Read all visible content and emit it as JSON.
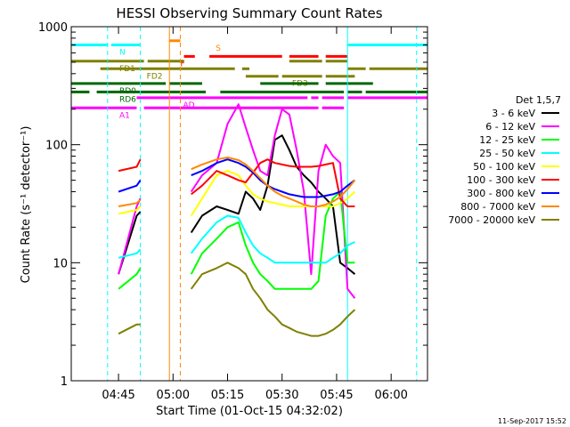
{
  "chart_data": {
    "type": "line",
    "title": "HESSI Observing Summary Count Rates",
    "xlabel": "Start Time (01-Oct-15 04:32:02)",
    "ylabel": "Count Rate (s⁻¹ detector⁻¹)",
    "footer": "11-Sep-2017 15:52",
    "xlim": [
      "04:32",
      "06:10"
    ],
    "ylim": [
      1,
      1000
    ],
    "yscale": "log",
    "grid": false,
    "legend_placement": "right",
    "legend_title": "Det 1,5,7",
    "x_ticks": [
      "04:45",
      "05:00",
      "05:15",
      "05:30",
      "05:45",
      "06:00"
    ],
    "y_ticks": [
      "1",
      "10",
      "100",
      "1000"
    ],
    "series": [
      {
        "name": "3 - 6 keV",
        "color": "#000000",
        "x": [
          "04:45",
          "04:50",
          "04:51",
          "04:55",
          "04:58",
          "05:03",
          "05:05",
          "05:08",
          "05:12",
          "05:15",
          "05:18",
          "05:20",
          "05:22",
          "05:24",
          "05:26",
          "05:28",
          "05:30",
          "05:32",
          "05:34",
          "05:36",
          "05:38",
          "05:40",
          "05:42",
          "05:44",
          "05:46",
          "05:48",
          "05:50"
        ],
        "y": [
          8,
          25,
          27,
          null,
          null,
          null,
          18,
          25,
          30,
          28,
          26,
          40,
          35,
          28,
          45,
          110,
          120,
          90,
          65,
          55,
          48,
          40,
          35,
          30,
          10,
          9,
          8
        ]
      },
      {
        "name": "6 - 12 keV",
        "color": "#ff00ff",
        "x": [
          "04:45",
          "04:50",
          "04:51",
          "04:55",
          "04:58",
          "05:03",
          "05:05",
          "05:08",
          "05:12",
          "05:15",
          "05:18",
          "05:20",
          "05:22",
          "05:24",
          "05:26",
          "05:28",
          "05:30",
          "05:32",
          "05:34",
          "05:36",
          "05:38",
          "05:40",
          "05:42",
          "05:44",
          "05:46",
          "05:48",
          "05:50"
        ],
        "y": [
          8,
          30,
          35,
          null,
          null,
          null,
          40,
          55,
          70,
          150,
          220,
          140,
          90,
          60,
          55,
          120,
          200,
          180,
          90,
          40,
          8,
          60,
          100,
          80,
          70,
          6,
          5
        ]
      },
      {
        "name": "12 - 25 keV",
        "color": "#00ff00",
        "x": [
          "04:45",
          "04:50",
          "04:51",
          "04:55",
          "04:58",
          "05:03",
          "05:05",
          "05:08",
          "05:12",
          "05:15",
          "05:18",
          "05:20",
          "05:22",
          "05:24",
          "05:26",
          "05:28",
          "05:30",
          "05:32",
          "05:34",
          "05:36",
          "05:38",
          "05:40",
          "05:42",
          "05:44",
          "05:46",
          "05:48",
          "05:50"
        ],
        "y": [
          6,
          8,
          9,
          null,
          null,
          null,
          8,
          12,
          16,
          20,
          22,
          14,
          10,
          8,
          7,
          6,
          6,
          6,
          6,
          6,
          6,
          7,
          25,
          35,
          40,
          10,
          10
        ]
      },
      {
        "name": "25 - 50 keV",
        "color": "#00ffff",
        "x": [
          "04:45",
          "04:50",
          "04:51",
          "04:55",
          "04:58",
          "05:03",
          "05:05",
          "05:08",
          "05:12",
          "05:15",
          "05:18",
          "05:20",
          "05:22",
          "05:24",
          "05:26",
          "05:28",
          "05:30",
          "05:32",
          "05:34",
          "05:36",
          "05:38",
          "05:40",
          "05:42",
          "05:44",
          "05:46",
          "05:48",
          "05:50"
        ],
        "y": [
          11,
          12,
          13,
          null,
          null,
          null,
          12,
          16,
          22,
          25,
          24,
          18,
          14,
          12,
          11,
          10,
          10,
          10,
          10,
          10,
          10,
          10,
          10,
          11,
          12,
          14,
          15
        ]
      },
      {
        "name": "50 - 100 keV",
        "color": "#ffff00",
        "x": [
          "04:45",
          "04:50",
          "04:51",
          "04:55",
          "04:58",
          "05:03",
          "05:05",
          "05:08",
          "05:12",
          "05:15",
          "05:18",
          "05:20",
          "05:22",
          "05:24",
          "05:26",
          "05:28",
          "05:30",
          "05:32",
          "05:34",
          "05:36",
          "05:38",
          "05:40",
          "05:42",
          "05:44",
          "05:46",
          "05:48",
          "05:50"
        ],
        "y": [
          26,
          28,
          30,
          null,
          null,
          null,
          25,
          35,
          55,
          60,
          55,
          45,
          38,
          35,
          33,
          32,
          31,
          30,
          30,
          30,
          30,
          30,
          30,
          30,
          32,
          35,
          40
        ]
      },
      {
        "name": "100 - 300 keV",
        "color": "#ff0000",
        "x": [
          "04:45",
          "04:50",
          "04:51",
          "04:55",
          "04:58",
          "05:03",
          "05:05",
          "05:08",
          "05:12",
          "05:15",
          "05:18",
          "05:20",
          "05:22",
          "05:24",
          "05:26",
          "05:28",
          "05:30",
          "05:32",
          "05:34",
          "05:36",
          "05:38",
          "05:40",
          "05:42",
          "05:44",
          "05:46",
          "05:48",
          "05:50"
        ],
        "y": [
          60,
          65,
          75,
          null,
          null,
          null,
          38,
          45,
          60,
          55,
          50,
          48,
          58,
          70,
          75,
          70,
          68,
          66,
          65,
          65,
          65,
          66,
          68,
          70,
          35,
          30,
          30
        ]
      },
      {
        "name": "300 - 800 keV",
        "color": "#0000ff",
        "x": [
          "04:45",
          "04:50",
          "04:51",
          "04:55",
          "04:58",
          "05:03",
          "05:05",
          "05:08",
          "05:12",
          "05:15",
          "05:18",
          "05:20",
          "05:22",
          "05:24",
          "05:26",
          "05:28",
          "05:30",
          "05:32",
          "05:34",
          "05:36",
          "05:38",
          "05:40",
          "05:42",
          "05:44",
          "05:46",
          "05:48",
          "05:50"
        ],
        "y": [
          40,
          45,
          50,
          null,
          null,
          null,
          55,
          60,
          70,
          75,
          70,
          65,
          58,
          50,
          45,
          42,
          40,
          38,
          37,
          36,
          36,
          36,
          37,
          38,
          40,
          45,
          50
        ]
      },
      {
        "name": "800 - 7000 keV",
        "color": "#ff8800",
        "x": [
          "04:45",
          "04:50",
          "04:51",
          "04:55",
          "04:58",
          "05:03",
          "05:05",
          "05:08",
          "05:12",
          "05:15",
          "05:18",
          "05:20",
          "05:22",
          "05:24",
          "05:26",
          "05:28",
          "05:30",
          "05:32",
          "05:34",
          "05:36",
          "05:38",
          "05:40",
          "05:42",
          "05:44",
          "05:46",
          "05:48",
          "05:50"
        ],
        "y": [
          30,
          32,
          34,
          null,
          null,
          null,
          62,
          68,
          75,
          78,
          74,
          68,
          60,
          52,
          45,
          40,
          37,
          35,
          33,
          31,
          30,
          30,
          31,
          33,
          36,
          42,
          50
        ]
      },
      {
        "name": "7000 - 20000 keV",
        "color": "#808000",
        "x": [
          "04:45",
          "04:50",
          "04:51",
          "04:55",
          "04:58",
          "05:03",
          "05:05",
          "05:08",
          "05:12",
          "05:15",
          "05:18",
          "05:20",
          "05:22",
          "05:24",
          "05:26",
          "05:28",
          "05:30",
          "05:32",
          "05:34",
          "05:36",
          "05:38",
          "05:40",
          "05:42",
          "05:44",
          "05:46",
          "05:48",
          "05:50"
        ],
        "y": [
          2.5,
          3,
          3,
          null,
          null,
          null,
          6,
          8,
          9,
          10,
          9,
          8,
          6,
          5,
          4,
          3.5,
          3,
          2.8,
          2.6,
          2.5,
          2.4,
          2.4,
          2.5,
          2.7,
          3,
          3.5,
          4
        ]
      }
    ],
    "flags": [
      {
        "label": "N",
        "color": "#00ffff",
        "y": 700,
        "segments": [
          [
            "04:32",
            "04:42"
          ],
          [
            "04:43",
            "04:51"
          ],
          [
            "05:48",
            "06:10"
          ]
        ]
      },
      {
        "label": "S",
        "color": "#ff8800",
        "y": 760,
        "segments": [
          [
            "04:59",
            "05:02"
          ]
        ]
      },
      {
        "label": "F",
        "color": "#ff0000",
        "y": 560,
        "segments": [
          [
            "05:03",
            "05:06"
          ],
          [
            "05:10",
            "05:30"
          ],
          [
            "05:32",
            "05:40"
          ],
          [
            "05:42",
            "05:48"
          ]
        ]
      },
      {
        "label": "FD1",
        "color": "#808000",
        "y": 510,
        "segments": [
          [
            "04:32",
            "04:52"
          ],
          [
            "04:53",
            "05:03"
          ],
          [
            "05:32",
            "05:41"
          ],
          [
            "05:42",
            "05:48"
          ]
        ]
      },
      {
        "label": "FD2",
        "color": "#808000",
        "y": 440,
        "segments": [
          [
            "04:40",
            "05:17"
          ],
          [
            "05:19",
            "05:21"
          ],
          [
            "05:48",
            "05:53"
          ],
          [
            "05:54",
            "06:10"
          ]
        ]
      },
      {
        "label": "FD3",
        "color": "#808000",
        "y": 380,
        "segments": [
          [
            "05:20",
            "05:29"
          ],
          [
            "05:30",
            "05:41"
          ],
          [
            "05:42",
            "05:50"
          ]
        ]
      },
      {
        "label": "RD0",
        "color": "#006600",
        "y": 330,
        "segments": [
          [
            "04:32",
            "04:58"
          ],
          [
            "04:59",
            "05:08"
          ],
          [
            "05:24",
            "05:40"
          ],
          [
            "05:42",
            "05:55"
          ]
        ]
      },
      {
        "label": "RD6",
        "color": "#006600",
        "y": 280,
        "segments": [
          [
            "04:32",
            "04:37"
          ],
          [
            "04:39",
            "05:09"
          ],
          [
            "05:13",
            "05:47"
          ],
          [
            "05:48",
            "05:52"
          ],
          [
            "05:53",
            "06:10"
          ]
        ]
      },
      {
        "label": "AD",
        "color": "#ff00ff",
        "y": 250,
        "segments": [
          [
            "04:50",
            "05:37"
          ],
          [
            "05:38",
            "05:40"
          ],
          [
            "05:41",
            "05:47"
          ],
          [
            "05:48",
            "06:10"
          ]
        ]
      },
      {
        "label": "A1",
        "color": "#ff00ff",
        "y": 205,
        "segments": [
          [
            "04:32",
            "04:50"
          ],
          [
            "04:52",
            "05:40"
          ],
          [
            "05:41",
            "05:47"
          ]
        ]
      }
    ],
    "markers": [
      {
        "x": "04:42",
        "color": "#00ffff",
        "style": "dashed"
      },
      {
        "x": "04:51",
        "color": "#00ffff",
        "style": "dashed"
      },
      {
        "x": "04:59",
        "color": "#ff8800",
        "style": "solid"
      },
      {
        "x": "05:02",
        "color": "#ff8800",
        "style": "dashed"
      },
      {
        "x": "05:48",
        "color": "#00ffff",
        "style": "solid"
      },
      {
        "x": "06:07",
        "color": "#00ffff",
        "style": "dashed"
      }
    ]
  }
}
